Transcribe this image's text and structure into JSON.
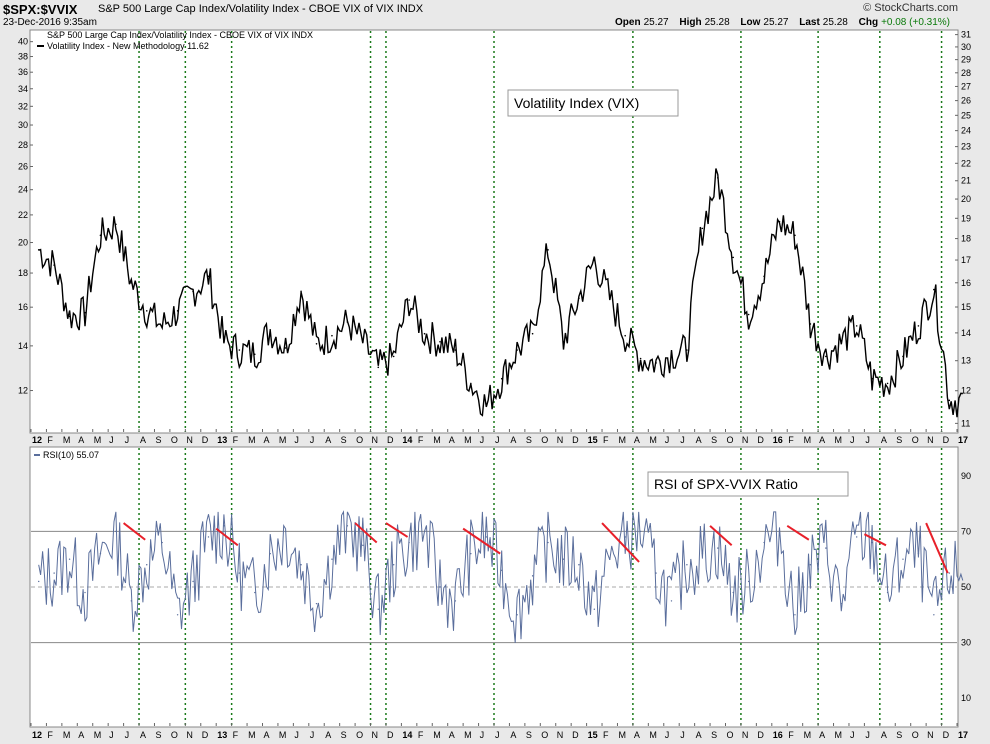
{
  "header": {
    "symbol": "$SPX:$VVIX",
    "description": "S&P 500 Large Cap Index/Volatility Index - CBOE VIX of VIX INDX",
    "date": "23-Dec-2016 9:35am",
    "brand": "© StockCharts.com",
    "quote": {
      "open_label": "Open",
      "open": "25.27",
      "high_label": "High",
      "high": "25.28",
      "low_label": "Low",
      "low": "25.27",
      "last_label": "Last",
      "last": "25.28",
      "chg_label": "Chg",
      "chg": "+0.08 (+0.31%)"
    }
  },
  "colors": {
    "price_line": "#000000",
    "rsi_line": "#5a6e9c",
    "divergence": "#e8202a",
    "vline": "#1a7a1a",
    "panel_bg": "#ffffff"
  },
  "chart_data": [
    {
      "type": "line",
      "legend": [
        "S&P 500 Large Cap Index/Volatility Index - CBOE VIX of VIX INDX",
        "Volatility Index - New Methodology 11.62"
      ],
      "annotation": "Volatility Index (VIX)",
      "scale": "log",
      "left_axis_ticks": [
        12,
        14,
        16,
        18,
        20,
        22,
        24,
        26,
        28,
        30,
        32,
        34,
        36,
        38,
        40
      ],
      "right_axis_ticks": [
        11,
        12,
        13,
        14,
        15,
        16,
        17,
        18,
        19,
        20,
        21,
        22,
        23,
        24,
        25,
        26,
        27,
        28,
        29,
        30,
        31
      ],
      "ylim_left": [
        10.4,
        41.5
      ],
      "ylim_right": [
        10.75,
        31.3
      ],
      "x": [
        "2012-01",
        "2012-02",
        "2012-03",
        "2012-04",
        "2012-05",
        "2012-06",
        "2012-07",
        "2012-08",
        "2012-09",
        "2012-10",
        "2012-11",
        "2012-12",
        "2013-01",
        "2013-02",
        "2013-03",
        "2013-04",
        "2013-05",
        "2013-06",
        "2013-07",
        "2013-08",
        "2013-09",
        "2013-10",
        "2013-11",
        "2013-12",
        "2014-01",
        "2014-02",
        "2014-03",
        "2014-04",
        "2014-05",
        "2014-06",
        "2014-07",
        "2014-08",
        "2014-09",
        "2014-10",
        "2014-11",
        "2014-12",
        "2015-01",
        "2015-02",
        "2015-03",
        "2015-04",
        "2015-05",
        "2015-06",
        "2015-07",
        "2015-08",
        "2015-09",
        "2015-10",
        "2015-11",
        "2015-12",
        "2016-01",
        "2016-02",
        "2016-03",
        "2016-04",
        "2016-05",
        "2016-06",
        "2016-07",
        "2016-08",
        "2016-09",
        "2016-10",
        "2016-11",
        "2016-12"
      ],
      "values": [
        19.5,
        18.5,
        15.5,
        15.7,
        20.5,
        21.3,
        17.4,
        15.8,
        15.0,
        15.8,
        16.9,
        17.8,
        14.2,
        13.8,
        13.6,
        14.8,
        13.9,
        16.9,
        14.1,
        14.5,
        15.2,
        14.2,
        13.0,
        13.5,
        16.4,
        14.6,
        14.2,
        13.8,
        12.3,
        11.4,
        12.5,
        13.8,
        14.6,
        19.5,
        14.2,
        16.5,
        18.8,
        16.5,
        14.5,
        13.4,
        13.2,
        13.6,
        13.8,
        21.0,
        25.0,
        19.0,
        15.6,
        17.8,
        21.5,
        20.5,
        15.1,
        13.5,
        14.2,
        15.0,
        12.5,
        12.3,
        13.5,
        15.0,
        17.0,
        11.6
      ],
      "x_tick_labels": [
        "12",
        "F",
        "M",
        "A",
        "M",
        "J",
        "J",
        "A",
        "S",
        "O",
        "N",
        "D",
        "13",
        "F",
        "M",
        "A",
        "M",
        "J",
        "J",
        "A",
        "S",
        "O",
        "N",
        "D",
        "14",
        "F",
        "M",
        "A",
        "M",
        "J",
        "J",
        "A",
        "S",
        "O",
        "N",
        "D",
        "15",
        "F",
        "M",
        "A",
        "M",
        "J",
        "J",
        "A",
        "S",
        "O",
        "N",
        "D",
        "16",
        "F",
        "M",
        "A",
        "M",
        "J",
        "J",
        "A",
        "S",
        "O",
        "N",
        "D",
        "17"
      ]
    },
    {
      "type": "line",
      "legend": "RSI(10) 55.07",
      "annotation": "RSI of SPX-VVIX Ratio",
      "ylim": [
        0,
        100
      ],
      "y_tick_labels": [
        10,
        30,
        50,
        70,
        90
      ],
      "reference_lines": [
        30,
        50,
        70
      ],
      "rsi_values": [
        52,
        55,
        60,
        48,
        62,
        70,
        45,
        58,
        66,
        40,
        52,
        68,
        72,
        55,
        48,
        62,
        70,
        58,
        44,
        60,
        72,
        65,
        42,
        58,
        66,
        70,
        50,
        45,
        62,
        68,
        56,
        40,
        54,
        66,
        60,
        58,
        42,
        60,
        68,
        70,
        55,
        45,
        58,
        62,
        64,
        48,
        52,
        66,
        70,
        40,
        58,
        64,
        44,
        68,
        66,
        48,
        60,
        62,
        40,
        55
      ],
      "divergences": [
        {
          "from": "2012-07",
          "to": "2012-08",
          "from_value": 73,
          "to_value": 67
        },
        {
          "from": "2013-01",
          "to": "2013-02",
          "from_value": 71,
          "to_value": 65
        },
        {
          "from": "2013-10",
          "to": "2013-11",
          "from_value": 73,
          "to_value": 66
        },
        {
          "from": "2013-12",
          "to": "2014-01",
          "from_value": 73,
          "to_value": 68
        },
        {
          "from": "2014-05",
          "to": "2014-07",
          "from_value": 71,
          "to_value": 62
        },
        {
          "from": "2015-02",
          "to": "2015-04",
          "from_value": 73,
          "to_value": 59
        },
        {
          "from": "2015-09",
          "to": "2015-10",
          "from_value": 72,
          "to_value": 65
        },
        {
          "from": "2016-02",
          "to": "2016-03",
          "from_value": 72,
          "to_value": 67
        },
        {
          "from": "2016-07",
          "to": "2016-08",
          "from_value": 69,
          "to_value": 65
        },
        {
          "from": "2016-11",
          "to": "2016-12",
          "from_value": 73,
          "to_value": 55
        }
      ]
    }
  ],
  "signal_lines": [
    "2012-08",
    "2012-11",
    "2013-02",
    "2013-11",
    "2013-12",
    "2014-07",
    "2015-04",
    "2015-11",
    "2016-04",
    "2016-08",
    "2016-12"
  ]
}
